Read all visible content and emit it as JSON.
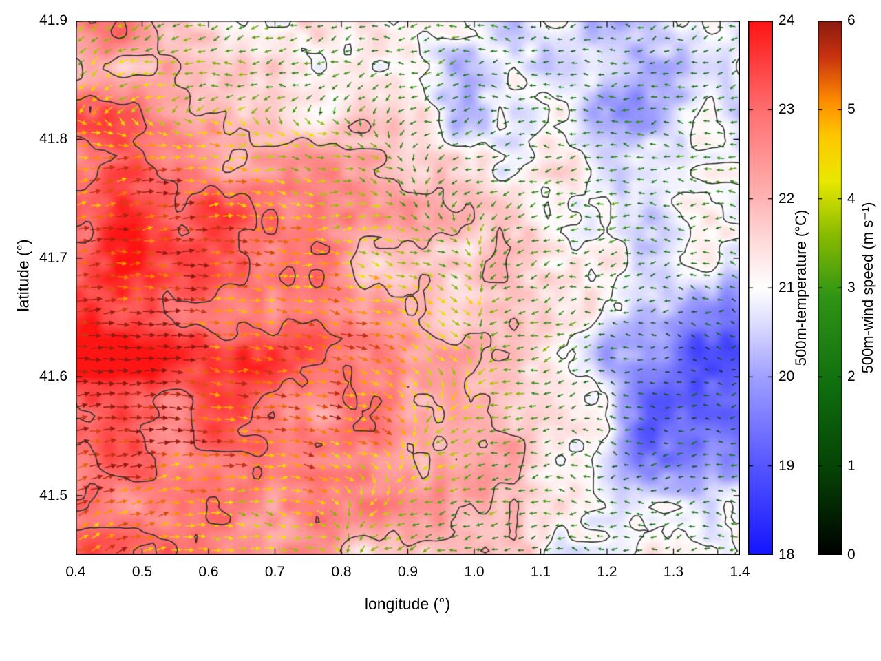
{
  "figure": {
    "background_color": "#ffffff",
    "plot_border_color": "#000000",
    "contour_color": "#303030",
    "x_axis": {
      "label": "longitude (°)",
      "min": 0.4,
      "max": 1.4,
      "tick_labels": [
        "0.4",
        "0.5",
        "0.6",
        "0.7",
        "0.8",
        "0.9",
        "1.0",
        "1.1",
        "1.2",
        "1.3",
        "1.4"
      ]
    },
    "y_axis": {
      "label": "latitude (°)",
      "min": 41.45,
      "max": 41.9,
      "tick_labels": [
        "41.5",
        "41.6",
        "41.7",
        "41.8",
        "41.9"
      ]
    },
    "colorbars": [
      {
        "id": "temperature",
        "label": "500m-temperature (°C)",
        "min": 18,
        "max": 24,
        "tick_labels": [
          "18",
          "19",
          "20",
          "21",
          "22",
          "23",
          "24"
        ],
        "stops": [
          [
            18,
            "#1414ff"
          ],
          [
            19,
            "#5555ff"
          ],
          [
            20,
            "#9f9fff"
          ],
          [
            20.6,
            "#dcdcff"
          ],
          [
            21,
            "#ffffff"
          ],
          [
            21.5,
            "#ffdcdc"
          ],
          [
            22,
            "#ffb4b4"
          ],
          [
            23,
            "#ff6e6e"
          ],
          [
            24,
            "#ff1414"
          ]
        ]
      },
      {
        "id": "wind-speed",
        "label": "500m-wind speed (m s⁻¹)",
        "min": 0,
        "max": 6,
        "tick_labels": [
          "0",
          "1",
          "2",
          "3",
          "4",
          "5",
          "6"
        ],
        "stops": [
          [
            0,
            "#000000"
          ],
          [
            0.9,
            "#053f05"
          ],
          [
            1.9,
            "#0f6e0f"
          ],
          [
            2.9,
            "#2f9414"
          ],
          [
            3.6,
            "#8abb00"
          ],
          [
            4.2,
            "#e8e800"
          ],
          [
            4.7,
            "#ffc800"
          ],
          [
            5.1,
            "#ff8c00"
          ],
          [
            5.6,
            "#c93310"
          ],
          [
            6,
            "#8c1a10"
          ]
        ]
      }
    ]
  },
  "chart_data": {
    "type": "heatmap",
    "layers": [
      "500m temperature shading",
      "temperature contour lines",
      "500m wind vectors coloured by wind speed"
    ],
    "xlabel": "longitude (°)",
    "ylabel": "latitude (°)",
    "xlim": [
      0.4,
      1.4
    ],
    "ylim": [
      41.45,
      41.9
    ],
    "grid_lon": [
      0.45,
      0.55,
      0.65,
      0.75,
      0.85,
      0.95,
      1.05,
      1.15,
      1.25,
      1.35
    ],
    "grid_lat": [
      41.475,
      41.55,
      41.625,
      41.7,
      41.775,
      41.85
    ],
    "temperature_c": [
      [
        23.0,
        22.8,
        22.5,
        22.3,
        22.2,
        22.0,
        21.5,
        21.2,
        20.8,
        21.0
      ],
      [
        23.3,
        23.2,
        23.0,
        22.8,
        22.8,
        22.4,
        22.0,
        21.3,
        19.8,
        20.0
      ],
      [
        23.8,
        23.5,
        23.3,
        23.0,
        22.8,
        22.4,
        21.5,
        20.8,
        19.4,
        19.2
      ],
      [
        23.5,
        23.4,
        23.0,
        22.6,
        22.2,
        22.0,
        21.4,
        21.0,
        20.8,
        21.2
      ],
      [
        23.2,
        23.0,
        22.6,
        22.2,
        21.8,
        21.4,
        21.0,
        20.9,
        20.6,
        21.0
      ],
      [
        22.6,
        22.0,
        21.4,
        21.3,
        20.9,
        20.5,
        20.8,
        20.4,
        20.0,
        20.6
      ]
    ],
    "wind_speed_ms": [
      [
        5.2,
        4.6,
        4.2,
        4.0,
        3.6,
        3.0,
        2.6,
        2.2,
        2.0,
        2.2
      ],
      [
        5.8,
        5.6,
        5.4,
        5.2,
        4.8,
        4.0,
        3.0,
        2.2,
        1.6,
        1.4
      ],
      [
        6.0,
        5.8,
        5.6,
        5.5,
        5.2,
        4.6,
        3.4,
        2.4,
        1.4,
        1.2
      ],
      [
        5.6,
        5.8,
        5.2,
        4.6,
        4.2,
        3.6,
        3.0,
        2.6,
        2.0,
        2.0
      ],
      [
        5.2,
        5.4,
        4.6,
        4.0,
        3.2,
        2.6,
        2.2,
        2.6,
        2.8,
        2.4
      ],
      [
        4.0,
        3.2,
        3.4,
        2.6,
        2.2,
        2.4,
        2.0,
        1.6,
        2.0,
        2.0
      ]
    ],
    "wind_dir_deg_ccw_from_east": [
      [
        25,
        10,
        0,
        350,
        200,
        190,
        185,
        175,
        185,
        195
      ],
      [
        10,
        0,
        352,
        346,
        340,
        205,
        190,
        180,
        170,
        185
      ],
      [
        0,
        358,
        355,
        350,
        345,
        338,
        200,
        190,
        182,
        180
      ],
      [
        5,
        0,
        358,
        354,
        350,
        345,
        205,
        192,
        182,
        172
      ],
      [
        12,
        6,
        0,
        350,
        340,
        205,
        192,
        180,
        172,
        182
      ],
      [
        205,
        195,
        185,
        192,
        200,
        190,
        182,
        172,
        182,
        192
      ]
    ],
    "contour_levels_c": [
      21,
      22,
      23
    ],
    "temperature_range_c": [
      18,
      24
    ],
    "wind_speed_range_ms": [
      0,
      6
    ]
  }
}
